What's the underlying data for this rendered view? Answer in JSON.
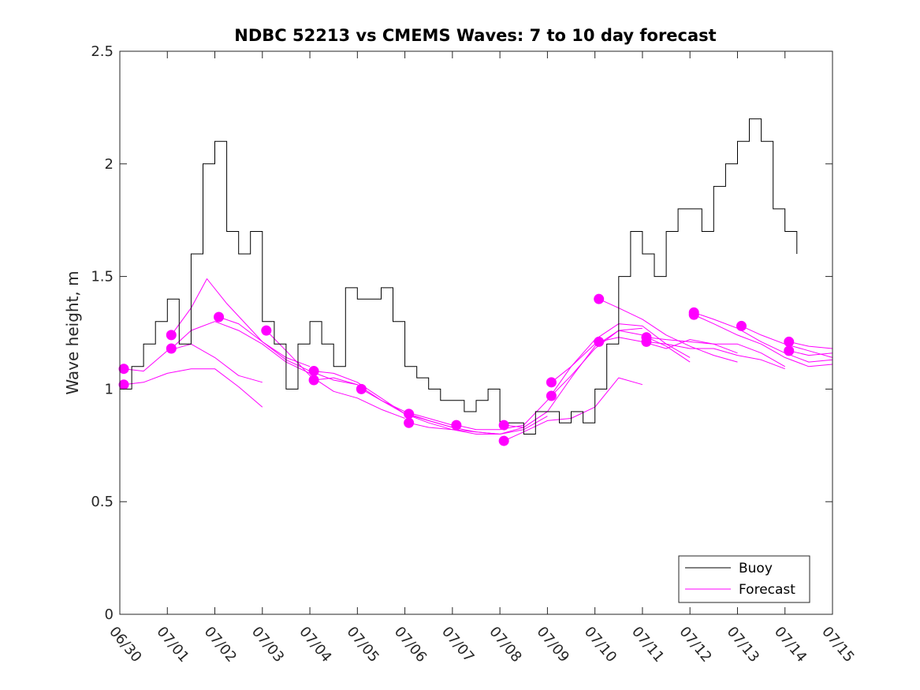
{
  "chart_data": {
    "type": "line",
    "title": "NDBC 52213 vs CMEMS Waves: 7 to 10 day forecast",
    "xlabel": "",
    "ylabel": "Wave height, m",
    "x_range": [
      "06/30",
      "07/15"
    ],
    "x_ticks": [
      "06/30",
      "07/01",
      "07/02",
      "07/03",
      "07/04",
      "07/05",
      "07/06",
      "07/07",
      "07/08",
      "07/09",
      "07/10",
      "07/11",
      "07/12",
      "07/13",
      "07/14",
      "07/15"
    ],
    "ylim": [
      0,
      2.5
    ],
    "y_ticks": [
      "0",
      "0.5",
      "1",
      "1.5",
      "2",
      "2.5"
    ],
    "y_tick_values": [
      0,
      0.5,
      1,
      1.5,
      2,
      2.5
    ],
    "grid": false,
    "legend_position": "bottom-right",
    "series": [
      {
        "name": "Buoy",
        "color": "#000000",
        "x": [
          "06/30 00:00",
          "06/30 06:00",
          "06/30 12:00",
          "06/30 18:00",
          "07/01 00:00",
          "07/01 06:00",
          "07/01 12:00",
          "07/01 18:00",
          "07/02 00:00",
          "07/02 06:00",
          "07/02 12:00",
          "07/02 18:00",
          "07/03 00:00",
          "07/03 06:00",
          "07/03 12:00",
          "07/03 18:00",
          "07/04 00:00",
          "07/04 06:00",
          "07/04 12:00",
          "07/04 18:00",
          "07/05 00:00",
          "07/05 06:00",
          "07/05 12:00",
          "07/05 18:00",
          "07/06 00:00",
          "07/06 06:00",
          "07/06 12:00",
          "07/06 18:00",
          "07/07 00:00",
          "07/07 06:00",
          "07/07 12:00",
          "07/07 18:00",
          "07/08 00:00",
          "07/08 06:00",
          "07/08 12:00",
          "07/08 18:00",
          "07/09 00:00",
          "07/09 06:00",
          "07/09 12:00",
          "07/09 18:00",
          "07/10 00:00",
          "07/10 06:00",
          "07/10 12:00",
          "07/10 18:00",
          "07/11 00:00",
          "07/11 06:00",
          "07/11 12:00",
          "07/11 18:00",
          "07/12 00:00",
          "07/12 06:00",
          "07/12 12:00",
          "07/12 18:00",
          "07/13 00:00",
          "07/13 06:00",
          "07/13 12:00",
          "07/13 18:00",
          "07/14 00:00",
          "07/14 06:00"
        ],
        "y": [
          1.0,
          1.1,
          1.2,
          1.3,
          1.4,
          1.2,
          1.6,
          2.0,
          2.1,
          1.7,
          1.6,
          1.7,
          1.3,
          1.2,
          1.0,
          1.2,
          1.3,
          1.2,
          1.1,
          1.45,
          1.4,
          1.4,
          1.45,
          1.3,
          1.1,
          1.05,
          1.0,
          0.95,
          0.95,
          0.9,
          0.95,
          1.0,
          0.85,
          0.85,
          0.8,
          0.9,
          0.9,
          0.85,
          0.9,
          0.85,
          1.0,
          1.2,
          1.5,
          1.7,
          1.6,
          1.5,
          1.7,
          1.8,
          1.8,
          1.7,
          1.9,
          2.0,
          2.1,
          2.2,
          2.1,
          1.8,
          1.7,
          1.6
        ]
      },
      {
        "name": "Forecast",
        "color": "#ff00ff",
        "runs": [
          {
            "x": [
              "06/30 02:00",
              "06/30 12:00",
              "07/01 00:00",
              "07/01 12:00",
              "07/02 00:00",
              "07/02 12:00",
              "07/03 00:00"
            ],
            "y": [
              1.02,
              1.03,
              1.07,
              1.09,
              1.09,
              1.01,
              0.92
            ]
          },
          {
            "x": [
              "06/30 02:00",
              "06/30 12:00",
              "07/01 00:00",
              "07/01 12:00",
              "07/02 00:00",
              "07/02 12:00",
              "07/03 00:00"
            ],
            "y": [
              1.09,
              1.08,
              1.17,
              1.2,
              1.14,
              1.06,
              1.03
            ]
          },
          {
            "x": [
              "07/01 02:00",
              "07/01 12:00",
              "07/02 00:00",
              "07/02 12:00",
              "07/03 00:00",
              "07/03 12:00",
              "07/04 00:00"
            ],
            "y": [
              1.18,
              1.26,
              1.3,
              1.26,
              1.2,
              1.12,
              1.07
            ]
          },
          {
            "x": [
              "07/01 02:00",
              "07/01 12:00",
              "07/01 20:00",
              "07/02 06:00",
              "07/03 00:00",
              "07/03 12:00",
              "07/04 00:00"
            ],
            "y": [
              1.24,
              1.36,
              1.49,
              1.38,
              1.21,
              1.14,
              1.1
            ]
          },
          {
            "x": [
              "07/02 02:00",
              "07/02 12:00",
              "07/03 00:00",
              "07/03 12:00",
              "07/04 00:00",
              "07/04 12:00",
              "07/05 00:00"
            ],
            "y": [
              1.32,
              1.29,
              1.21,
              1.13,
              1.08,
              1.04,
              1.02
            ]
          },
          {
            "x": [
              "07/03 02:00",
              "07/03 12:00",
              "07/04 00:00",
              "07/04 12:00",
              "07/05 00:00",
              "07/05 12:00",
              "07/06 00:00"
            ],
            "y": [
              1.26,
              1.17,
              1.06,
              0.99,
              0.96,
              0.91,
              0.87
            ]
          },
          {
            "x": [
              "07/04 02:00",
              "07/04 12:00",
              "07/05 00:00",
              "07/05 12:00",
              "07/06 00:00",
              "07/06 12:00",
              "07/07 00:00"
            ],
            "y": [
              1.08,
              1.07,
              1.03,
              0.96,
              0.89,
              0.86,
              0.83
            ]
          },
          {
            "x": [
              "07/04 02:00",
              "07/04 12:00",
              "07/05 00:00",
              "07/05 12:00",
              "07/06 00:00",
              "07/06 12:00",
              "07/07 00:00"
            ],
            "y": [
              1.04,
              1.05,
              1.02,
              0.95,
              0.9,
              0.87,
              0.84
            ]
          },
          {
            "x": [
              "07/05 02:00",
              "07/05 12:00",
              "07/06 00:00",
              "07/06 12:00",
              "07/07 00:00",
              "07/07 12:00",
              "07/08 00:00"
            ],
            "y": [
              1.0,
              0.95,
              0.89,
              0.85,
              0.82,
              0.8,
              0.8
            ]
          },
          {
            "x": [
              "07/06 02:00",
              "07/06 12:00",
              "07/07 00:00",
              "07/07 12:00",
              "07/08 00:00",
              "07/08 12:00",
              "07/09 00:00"
            ],
            "y": [
              0.89,
              0.86,
              0.83,
              0.81,
              0.8,
              0.82,
              0.88
            ]
          },
          {
            "x": [
              "07/06 02:00",
              "07/06 12:00",
              "07/07 00:00",
              "07/07 12:00",
              "07/08 00:00",
              "07/08 12:00",
              "07/09 00:00"
            ],
            "y": [
              0.85,
              0.83,
              0.82,
              0.81,
              0.8,
              0.83,
              0.9
            ]
          },
          {
            "x": [
              "07/07 02:00",
              "07/07 12:00",
              "07/08 00:00",
              "07/08 12:00",
              "07/09 00:00",
              "07/09 12:00",
              "07/10 00:00"
            ],
            "y": [
              0.84,
              0.82,
              0.82,
              0.84,
              0.95,
              1.1,
              1.2
            ]
          },
          {
            "x": [
              "07/08 02:00",
              "07/08 12:00",
              "07/09 00:00",
              "07/09 12:00",
              "07/10 00:00",
              "07/10 12:00",
              "07/11 00:00"
            ],
            "y": [
              0.84,
              0.83,
              0.9,
              1.05,
              1.19,
              1.26,
              1.27
            ]
          },
          {
            "x": [
              "07/08 02:00",
              "07/08 12:00",
              "07/09 00:00",
              "07/09 12:00",
              "07/10 00:00",
              "07/10 12:00",
              "07/11 00:00"
            ],
            "y": [
              0.77,
              0.81,
              0.86,
              0.87,
              0.92,
              1.05,
              1.02
            ]
          },
          {
            "x": [
              "07/09 02:00",
              "07/09 12:00",
              "07/10 00:00",
              "07/10 12:00",
              "07/11 00:00",
              "07/11 12:00",
              "07/12 00:00"
            ],
            "y": [
              1.03,
              1.1,
              1.22,
              1.29,
              1.28,
              1.2,
              1.14
            ]
          },
          {
            "x": [
              "07/09 02:00",
              "07/09 12:00",
              "07/10 00:00",
              "07/10 12:00",
              "07/11 00:00",
              "07/11 12:00",
              "07/12 00:00"
            ],
            "y": [
              0.97,
              1.06,
              1.18,
              1.26,
              1.24,
              1.19,
              1.12
            ]
          },
          {
            "x": [
              "07/10 02:00",
              "07/10 12:00",
              "07/11 00:00",
              "07/11 12:00",
              "07/12 00:00",
              "07/12 12:00",
              "07/13 00:00"
            ],
            "y": [
              1.4,
              1.36,
              1.31,
              1.24,
              1.19,
              1.15,
              1.12
            ]
          },
          {
            "x": [
              "07/10 02:00",
              "07/10 12:00",
              "07/11 00:00",
              "07/11 12:00",
              "07/12 00:00",
              "07/12 12:00",
              "07/13 00:00"
            ],
            "y": [
              1.21,
              1.23,
              1.21,
              1.18,
              1.22,
              1.2,
              1.16
            ]
          },
          {
            "x": [
              "07/11 02:00",
              "07/11 12:00",
              "07/12 00:00",
              "07/12 12:00",
              "07/13 00:00",
              "07/13 12:00",
              "07/14 00:00"
            ],
            "y": [
              1.23,
              1.22,
              1.21,
              1.2,
              1.2,
              1.16,
              1.1
            ]
          },
          {
            "x": [
              "07/11 02:00",
              "07/11 12:00",
              "07/12 00:00",
              "07/12 12:00",
              "07/13 00:00",
              "07/13 12:00",
              "07/14 00:00"
            ],
            "y": [
              1.21,
              1.2,
              1.18,
              1.18,
              1.15,
              1.13,
              1.09
            ]
          },
          {
            "x": [
              "07/12 02:00",
              "07/12 12:00",
              "07/13 00:00",
              "07/13 12:00",
              "07/14 00:00",
              "07/14 12:00",
              "07/15 00:00"
            ],
            "y": [
              1.34,
              1.31,
              1.27,
              1.21,
              1.16,
              1.12,
              1.13
            ]
          },
          {
            "x": [
              "07/12 02:00",
              "07/12 12:00",
              "07/13 00:00",
              "07/13 12:00",
              "07/14 00:00",
              "07/14 12:00",
              "07/15 00:00"
            ],
            "y": [
              1.33,
              1.29,
              1.24,
              1.2,
              1.14,
              1.1,
              1.11
            ]
          },
          {
            "x": [
              "07/13 02:00",
              "07/13 12:00",
              "07/14 00:00",
              "07/14 12:00",
              "07/15 00:00"
            ],
            "y": [
              1.28,
              1.24,
              1.2,
              1.17,
              1.14
            ]
          },
          {
            "x": [
              "07/14 02:00",
              "07/14 12:00",
              "07/15 00:00"
            ],
            "y": [
              1.21,
              1.19,
              1.18
            ]
          },
          {
            "x": [
              "07/14 02:00",
              "07/14 12:00",
              "07/15 00:00"
            ],
            "y": [
              1.17,
              1.15,
              1.16
            ]
          }
        ]
      }
    ]
  }
}
